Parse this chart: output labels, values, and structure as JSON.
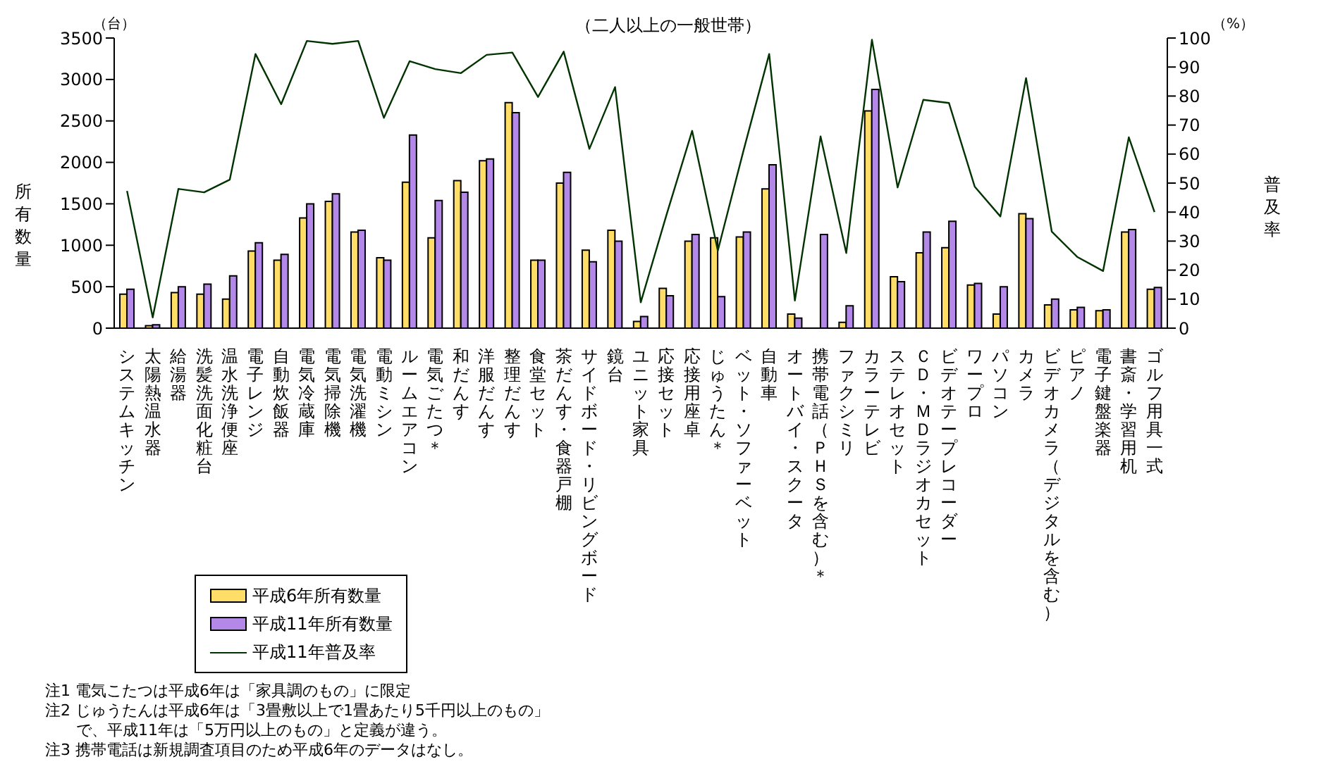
{
  "chart_data": {
    "type": "bar",
    "subtitle": "（二人以上の一般世帯）",
    "ylabel": "所有数量",
    "y2label": "普及率",
    "categories": [
      "システムキッチン",
      "太陽熱温水器",
      "給湯器",
      "洗髪洗面化粧台",
      "温水洗浄便座",
      "電子レンジ",
      "自動炊飯器",
      "電気冷蔵庫",
      "電気掃除機",
      "電気洗濯機",
      "電動ミシン",
      "ルームエアコン",
      "電気ごたつ＊",
      "和だんす",
      "洋服だんす",
      "整理だんす",
      "食堂セット",
      "茶だんす・食器戸棚",
      "サイドボード・リビングボード",
      "鏡台",
      "ユニット家具",
      "応接セット",
      "応接用座卓",
      "じゅうたん＊",
      "ベット・ソファーベット",
      "自動車",
      "オートバイ・スクータ",
      "携帯電話（ＰＨＳを含む）＊",
      "ファクシミリ",
      "カラーテレビ",
      "ステレオセット",
      "ＣＤ・ＭＤラジオカセット",
      "ビデオテープレコーダー",
      "ワープロ",
      "パソコン",
      "カメラ",
      "ビデオカメラ（デジタルを含む）",
      "ピアノ",
      "電子鍵盤楽器",
      "書斎・学習用机",
      "ゴルフ用具一式"
    ],
    "series": [
      {
        "name": "平成6年所有数量",
        "color": "#ffdd66",
        "values": [
          410,
          30,
          430,
          410,
          350,
          930,
          820,
          1330,
          1530,
          1160,
          850,
          1760,
          1090,
          1780,
          2020,
          2720,
          820,
          1750,
          940,
          1180,
          80,
          480,
          1050,
          1090,
          1100,
          1680,
          170,
          null,
          70,
          2620,
          620,
          910,
          970,
          520,
          170,
          1380,
          280,
          220,
          210,
          1160,
          470
        ]
      },
      {
        "name": "平成11年所有数量",
        "color": "#b388e8",
        "values": [
          470,
          40,
          500,
          530,
          630,
          1030,
          890,
          1500,
          1620,
          1180,
          820,
          2330,
          1540,
          1640,
          2040,
          2600,
          820,
          1880,
          800,
          1050,
          140,
          390,
          1130,
          380,
          1160,
          1970,
          120,
          1130,
          270,
          2880,
          560,
          1160,
          1290,
          540,
          500,
          1320,
          350,
          250,
          220,
          1190,
          490
        ]
      },
      {
        "name": "平成11年普及率",
        "type": "line",
        "axis": "y2",
        "color": "#003300",
        "values": [
          47.3,
          3.7,
          48,
          46.8,
          51.2,
          94.5,
          77.2,
          99,
          98,
          99,
          72.5,
          92,
          89.3,
          87.9,
          94.2,
          95,
          79.7,
          95.3,
          61.8,
          83.1,
          8.9,
          39,
          68,
          26.7,
          61.2,
          94.5,
          9.5,
          66.1,
          25.9,
          99.4,
          48.5,
          78.7,
          77.6,
          48.8,
          38.5,
          86.2,
          33.3,
          24.5,
          19.7,
          65.8,
          40
        ]
      }
    ],
    "ylim": [
      0,
      3500
    ],
    "yticks": [
      0,
      500,
      1000,
      1500,
      2000,
      2500,
      3000,
      3500
    ],
    "y2lim": [
      0,
      100
    ],
    "y2ticks": [
      0,
      10,
      20,
      30,
      40,
      50,
      60,
      70,
      80,
      90,
      100
    ],
    "legend": "bottom left",
    "annotations": [
      "（台）",
      "（%）",
      "注1 電気こたつは平成6年は「家具調のもの」に限定",
      "注2 じゅうたんは平成6年は「3畳敷以上で1畳あたり5千円以上のもの」",
      "　　で、平成11年は「5万円以上のもの」と定義が違う。",
      "注3 携帯電話は新規調査項目のため平成6年のデータはなし。"
    ]
  }
}
